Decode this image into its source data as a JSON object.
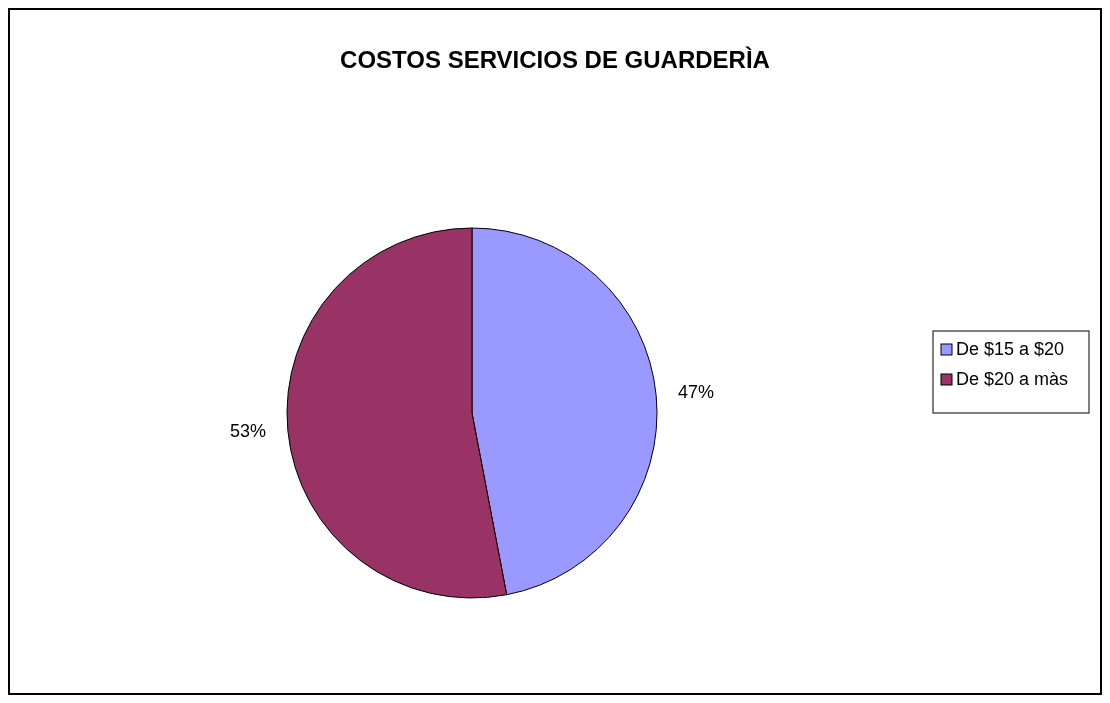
{
  "chart_data": {
    "type": "pie",
    "title": "COSTOS SERVICIOS DE GUARDERÌA",
    "categories": [
      "De $15 a $20",
      "De $20 a màs"
    ],
    "values": [
      47,
      53
    ],
    "colors": [
      "#9999ff",
      "#993366"
    ],
    "value_labels": [
      "47%",
      "53%"
    ],
    "legend": "right"
  }
}
